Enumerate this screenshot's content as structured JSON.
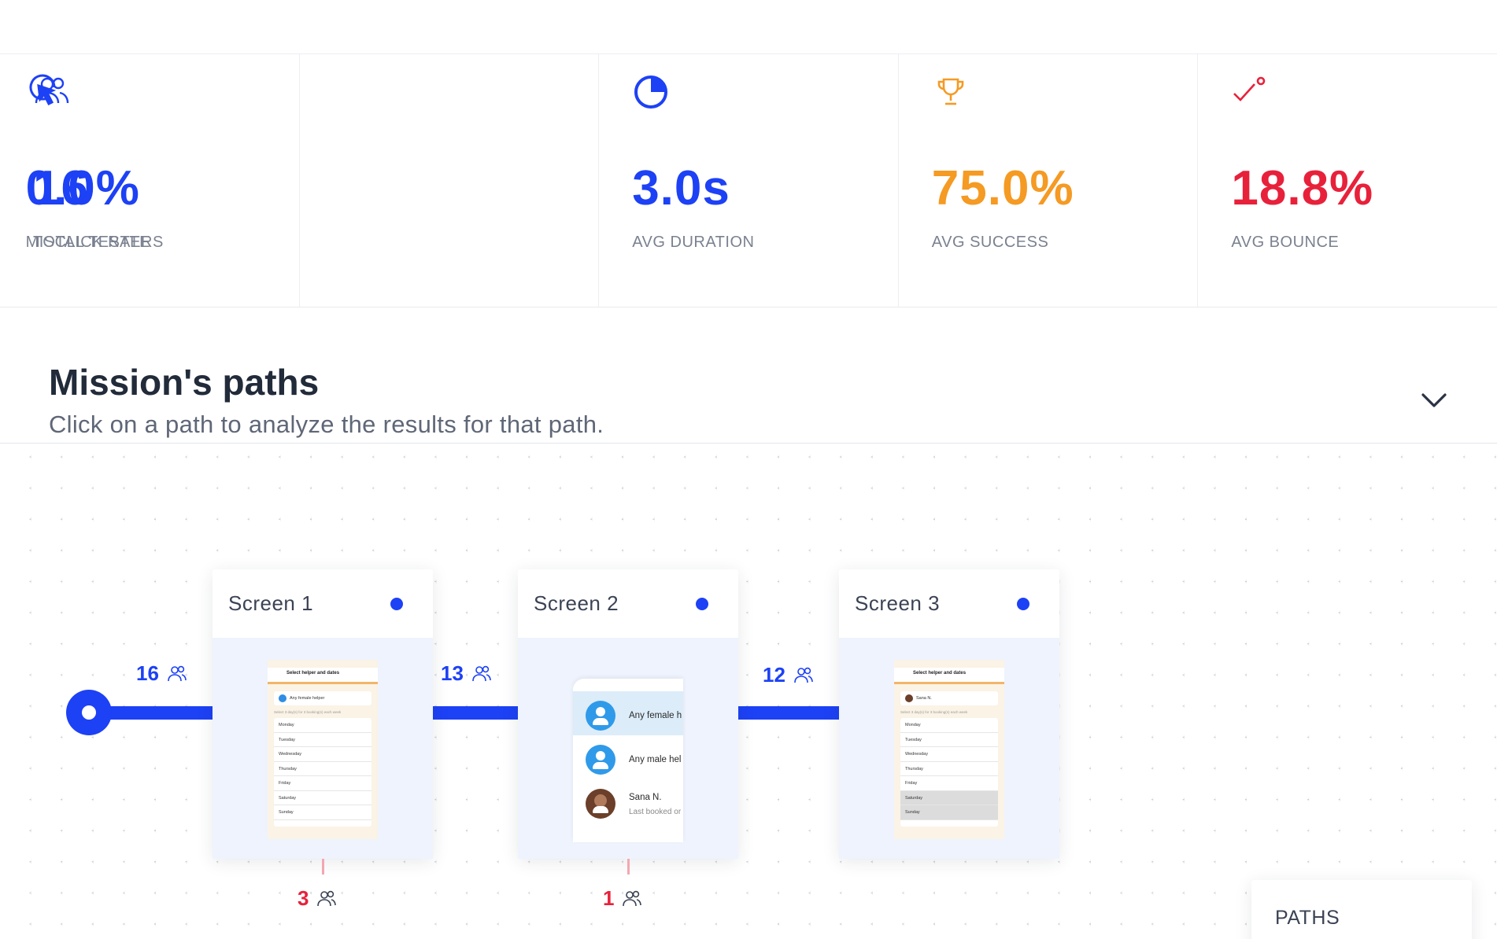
{
  "stats": [
    {
      "icon": "users-icon",
      "value": "16",
      "label": "TOTAL TESTERS",
      "color": "#1d41f5"
    },
    {
      "icon": "cursor-click-icon",
      "value": "0.0%",
      "label": "MISCLICK RATE",
      "color": "#1d41f5"
    },
    {
      "icon": "pie-clock-icon",
      "value": "3.0s",
      "label": "AVG DURATION",
      "color": "#1d41f5"
    },
    {
      "icon": "trophy-icon",
      "value": "75.0%",
      "label": "AVG SUCCESS",
      "color": "#f59a23"
    },
    {
      "icon": "bounce-arrow-icon",
      "value": "18.8%",
      "label": "AVG BOUNCE",
      "color": "#e8213b"
    }
  ],
  "section": {
    "title": "Mission's paths",
    "subtitle": "Click on a path to analyze the results for that path."
  },
  "flow": {
    "start_count": "16",
    "screens": [
      {
        "name": "Screen 1",
        "incoming": "16",
        "outgoing": "13",
        "drop": "3"
      },
      {
        "name": "Screen 2",
        "incoming": "13",
        "outgoing": "12",
        "drop": "1"
      },
      {
        "name": "Screen 3",
        "incoming": "12"
      }
    ]
  },
  "screen1_preview": {
    "header": "Select helper and dates",
    "selected": "Any female helper",
    "note": "Select 3 day(s) for 3 booking(s) each week",
    "days": [
      "Monday",
      "Tuesday",
      "Wednesday",
      "Thursday",
      "Friday",
      "Saturday",
      "Sunday"
    ]
  },
  "screen2_preview": {
    "option1": "Any female h",
    "option2": "Any male hel",
    "option3": "Sana N.",
    "option3_sub": "Last booked or"
  },
  "screen3_preview": {
    "header": "Select helper and dates",
    "selected": "Sana N.",
    "note": "Select 3 day(s) for 3 booking(s) each week",
    "days": [
      "Monday",
      "Tuesday",
      "Wednesday",
      "Thursday",
      "Friday",
      "Saturday",
      "Sunday"
    ]
  },
  "paths_panel": {
    "label": "PATHS"
  },
  "colors": {
    "accent": "#1d41f5",
    "success": "#f59a23",
    "danger": "#e8213b"
  }
}
